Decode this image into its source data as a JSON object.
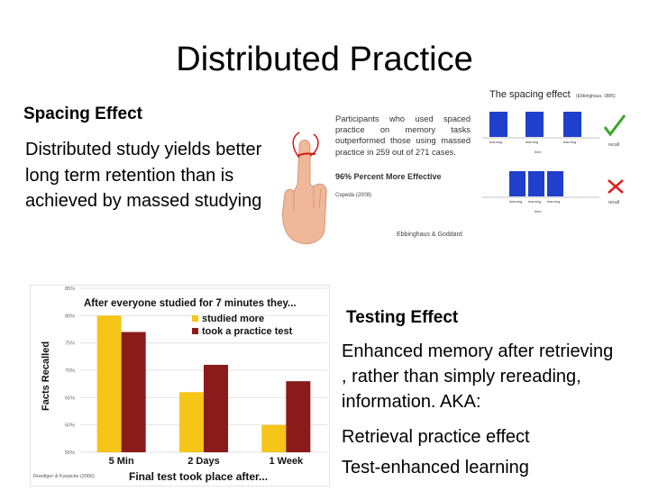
{
  "slide": {
    "title": "Distributed Practice"
  },
  "spacing": {
    "heading": "Spacing Effect",
    "description": "Distributed study yields better long term retention than is achieved by massed studying"
  },
  "study_box": {
    "text": "Participants who used spaced practice on memory tasks outperformed those using massed practice in 259 out of 271 cases.",
    "highlight": "96% Percent More Effective",
    "citation": "Cepeda (2008)",
    "credit": "Ebbinghaus & Goddard"
  },
  "spacing_figure": {
    "title": "The spacing effect",
    "citation": "(Ebbinghaus, 1885)",
    "top_row_labels": [
      "learning",
      "learning",
      "learning"
    ],
    "bottom_row_labels": [
      "learning",
      "learning",
      "learning"
    ],
    "axis_label": "time",
    "recall_label": "recall",
    "check_color": "#3aa52a",
    "cross_color": "#d9201c",
    "block_color": "#1f3fcc"
  },
  "chart_data": {
    "type": "bar",
    "title": "After everyone studied for 7 minutes they...",
    "ylabel": "Facts Recalled",
    "xlabel": "Final test took place after...",
    "categories": [
      "5 Min",
      "2 Days",
      "1 Week"
    ],
    "ytick_labels": [
      "85%",
      "80%",
      "75%",
      "70%",
      "65%",
      "60%",
      "55%"
    ],
    "ylim": [
      55,
      85
    ],
    "series": [
      {
        "name": "studied more",
        "color": "#f5c518",
        "values": [
          80,
          66,
          60
        ]
      },
      {
        "name": "took a practice test",
        "color": "#8b1a1a",
        "values": [
          77,
          71,
          68
        ]
      }
    ],
    "legend": "top-right",
    "source": "Roediger & Karpicke (2006)"
  },
  "testing": {
    "heading": "Testing Effect",
    "description_lines": [
      "Enhanced memory after retrieving",
      ", rather than simply rereading,",
      "information.  AKA:"
    ],
    "aka": [
      "Retrieval practice effect",
      "Test-enhanced learning"
    ]
  }
}
